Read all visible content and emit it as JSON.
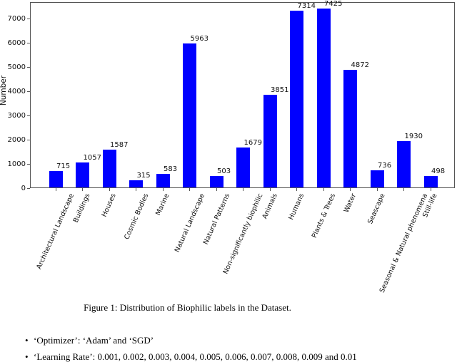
{
  "chart_data": {
    "type": "bar",
    "title": "",
    "xlabel": "",
    "ylabel": "Number",
    "categories": [
      "Architectural Landscape",
      "Buildings",
      "Houses",
      "Cosmic Bodies",
      "Marine",
      "Natural Landscape",
      "Natural Patterns",
      "Non-significantly biophilic",
      "Animals",
      "Humans",
      "Plants & Trees",
      "Water",
      "Seascape",
      "Seasonal & Natural phenomena",
      "Still-life"
    ],
    "values": [
      715,
      1057,
      1587,
      315,
      583,
      5963,
      503,
      1679,
      3851,
      7314,
      7425,
      4872,
      736,
      1930,
      498
    ],
    "bar_color": "#0000ff",
    "ylim": [
      0,
      7676
    ],
    "yticks": [
      0,
      1000,
      2000,
      3000,
      4000,
      5000,
      6000,
      7000
    ],
    "grid": "off",
    "legend": "none",
    "value_labels": "above-right of each bar",
    "x_tick_label_rotation_deg": 66
  },
  "document": {
    "caption": "Figure 1: Distribution of Biophilic labels in the Dataset.",
    "bullet_glyph": "•",
    "bullets": [
      "‘Optimizer’: ‘Adam’ and ‘SGD’",
      "‘Learning Rate’: 0.001, 0.002, 0.003, 0.004, 0.005, 0.006, 0.007, 0.008, 0.009 and 0.01"
    ]
  }
}
